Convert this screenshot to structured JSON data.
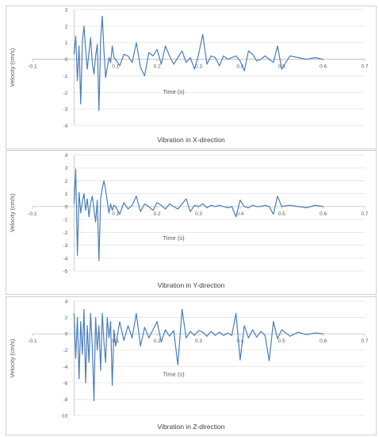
{
  "chart_data": [
    {
      "type": "line",
      "caption": "Vibration in X-direction",
      "xlabel": "Time (s)",
      "ylabel": "Velocity (cm/s)",
      "xlim": [
        -0.1,
        0.7
      ],
      "ylim": [
        -4,
        3
      ],
      "x_ticks": [
        -0.1,
        0.1,
        0.2,
        0.3,
        0.4,
        0.5,
        0.6,
        0.7
      ],
      "y_ticks": [
        3,
        2,
        1,
        0,
        -1,
        -2,
        -3,
        -4
      ],
      "grid": "horizontal",
      "color": "#4a7ebb",
      "series": [
        {
          "x": [
            0,
            0.004,
            0.008,
            0.012,
            0.016,
            0.02,
            0.024,
            0.028,
            0.032,
            0.036,
            0.04,
            0.044,
            0.048,
            0.052,
            0.056,
            0.06,
            0.064,
            0.068,
            0.072,
            0.076,
            0.08,
            0.084,
            0.088,
            0.092,
            0.096,
            0.1,
            0.11,
            0.12,
            0.13,
            0.14,
            0.15,
            0.16,
            0.17,
            0.18,
            0.19,
            0.2,
            0.21,
            0.22,
            0.23,
            0.24,
            0.25,
            0.26,
            0.27,
            0.28,
            0.29,
            0.3,
            0.31,
            0.32,
            0.33,
            0.34,
            0.35,
            0.36,
            0.37,
            0.38,
            0.39,
            0.4,
            0.41,
            0.42,
            0.43,
            0.44,
            0.45,
            0.46,
            0.47,
            0.48,
            0.49,
            0.5,
            0.52,
            0.54,
            0.56,
            0.58,
            0.6
          ],
          "y": [
            0.3,
            1.4,
            -1.3,
            0.8,
            -2.7,
            1.1,
            2.0,
            0.6,
            -0.6,
            0.4,
            1.3,
            -0.2,
            -0.9,
            0.2,
            0.9,
            -3.1,
            1.2,
            2.6,
            0.5,
            -1.1,
            -0.5,
            0.1,
            -0.2,
            0.8,
            0.1,
            0.0,
            -0.4,
            0.3,
            0.2,
            -0.2,
            1.0,
            -0.5,
            -1.0,
            0.4,
            0.2,
            0.6,
            -0.3,
            0.8,
            0.2,
            -0.3,
            0.1,
            0.5,
            -0.2,
            0.1,
            -0.6,
            0.3,
            1.5,
            -0.3,
            0.2,
            0.1,
            -0.4,
            0.2,
            0.0,
            0.1,
            0.2,
            -0.1,
            -0.7,
            0.5,
            0.3,
            -0.1,
            0.0,
            0.2,
            0.0,
            -0.2,
            0.8,
            -0.6,
            0.2,
            0.1,
            0.0,
            0.1,
            0.0
          ]
        }
      ]
    },
    {
      "type": "line",
      "caption": "Vibration in Y-direction",
      "xlabel": "Time (s)",
      "ylabel": "Velocity (cm/s)",
      "xlim": [
        -0.1,
        0.7
      ],
      "ylim": [
        -5,
        4
      ],
      "x_ticks": [
        -0.1,
        0.1,
        0.2,
        0.3,
        0.4,
        0.5,
        0.6,
        0.7
      ],
      "y_ticks": [
        4,
        3,
        2,
        1,
        0,
        -1,
        -2,
        -3,
        -4,
        -5
      ],
      "grid": "horizontal",
      "color": "#4a7ebb",
      "series": [
        {
          "x": [
            0,
            0.004,
            0.008,
            0.012,
            0.016,
            0.02,
            0.024,
            0.028,
            0.032,
            0.036,
            0.04,
            0.044,
            0.048,
            0.052,
            0.056,
            0.06,
            0.064,
            0.068,
            0.072,
            0.076,
            0.08,
            0.084,
            0.088,
            0.092,
            0.096,
            0.1,
            0.11,
            0.12,
            0.13,
            0.14,
            0.15,
            0.16,
            0.17,
            0.18,
            0.19,
            0.2,
            0.21,
            0.22,
            0.23,
            0.24,
            0.25,
            0.26,
            0.27,
            0.28,
            0.29,
            0.3,
            0.31,
            0.32,
            0.33,
            0.34,
            0.35,
            0.36,
            0.37,
            0.38,
            0.39,
            0.4,
            0.41,
            0.42,
            0.43,
            0.44,
            0.45,
            0.46,
            0.47,
            0.48,
            0.49,
            0.5,
            0.52,
            0.54,
            0.56,
            0.58,
            0.6
          ],
          "y": [
            0.2,
            2.9,
            -3.8,
            1.1,
            -0.5,
            0.4,
            1.0,
            -0.3,
            0.6,
            -0.8,
            0.3,
            0.8,
            -0.2,
            -1.2,
            0.5,
            -4.2,
            0.6,
            1.4,
            2.0,
            1.3,
            0.4,
            -0.5,
            0.2,
            -0.3,
            0.1,
            0.0,
            -0.6,
            0.3,
            -0.2,
            0.1,
            0.8,
            -0.4,
            0.2,
            0.0,
            -0.3,
            0.3,
            0.1,
            -0.2,
            0.2,
            0.0,
            -0.2,
            0.2,
            0.6,
            -0.4,
            0.1,
            0.0,
            0.2,
            -0.1,
            0.1,
            0.0,
            0.1,
            0.0,
            -0.1,
            0.0,
            -0.8,
            0.5,
            0.0,
            -0.1,
            0.1,
            0.0,
            0.0,
            0.1,
            0.0,
            -0.6,
            0.8,
            0.0,
            0.1,
            0.0,
            -0.1,
            0.1,
            0.0
          ]
        }
      ]
    },
    {
      "type": "line",
      "caption": "Vibration in Z-direction",
      "xlabel": "Time (s)",
      "ylabel": "Velocity (cm/s)",
      "xlim": [
        -0.1,
        0.7
      ],
      "ylim": [
        -10,
        4
      ],
      "x_ticks": [
        -0.1,
        0.1,
        0.2,
        0.3,
        0.4,
        0.5,
        0.6,
        0.7
      ],
      "y_ticks": [
        4,
        2,
        0,
        -2,
        -4,
        -6,
        -8,
        -10
      ],
      "grid": "horizontal",
      "color": "#4a7ebb",
      "series": [
        {
          "x": [
            0,
            0.004,
            0.008,
            0.012,
            0.016,
            0.02,
            0.024,
            0.028,
            0.032,
            0.036,
            0.04,
            0.044,
            0.048,
            0.052,
            0.056,
            0.06,
            0.064,
            0.068,
            0.072,
            0.076,
            0.08,
            0.084,
            0.088,
            0.092,
            0.096,
            0.1,
            0.11,
            0.12,
            0.13,
            0.14,
            0.15,
            0.16,
            0.17,
            0.18,
            0.19,
            0.2,
            0.21,
            0.22,
            0.23,
            0.24,
            0.25,
            0.26,
            0.27,
            0.28,
            0.29,
            0.3,
            0.31,
            0.32,
            0.33,
            0.34,
            0.35,
            0.36,
            0.37,
            0.38,
            0.39,
            0.4,
            0.41,
            0.42,
            0.43,
            0.44,
            0.45,
            0.46,
            0.47,
            0.48,
            0.49,
            0.5,
            0.52,
            0.54,
            0.56,
            0.58,
            0.6
          ],
          "y": [
            2.5,
            -3.0,
            2.0,
            -5.5,
            1.5,
            -2.5,
            3.0,
            -6.0,
            1.0,
            -3.5,
            2.5,
            -1.5,
            -8.2,
            2.0,
            -2.0,
            1.0,
            -4.5,
            2.5,
            -1.0,
            -3.5,
            2.0,
            -0.5,
            1.5,
            -6.3,
            0.5,
            -1.5,
            1.5,
            -0.8,
            1.0,
            -0.5,
            2.5,
            -1.5,
            0.8,
            -0.5,
            0.5,
            1.5,
            -1.0,
            0.5,
            -0.3,
            0.4,
            -3.8,
            3.0,
            -0.5,
            0.3,
            -0.2,
            0.4,
            0.2,
            -0.3,
            0.3,
            -0.2,
            0.2,
            -0.2,
            0.1,
            -0.2,
            2.5,
            -3.2,
            1.0,
            -0.5,
            0.5,
            -0.4,
            0.3,
            -0.2,
            -3.3,
            1.5,
            -0.6,
            0.5,
            -0.3,
            0.2,
            -0.1,
            0.1,
            0.0
          ]
        }
      ]
    }
  ]
}
